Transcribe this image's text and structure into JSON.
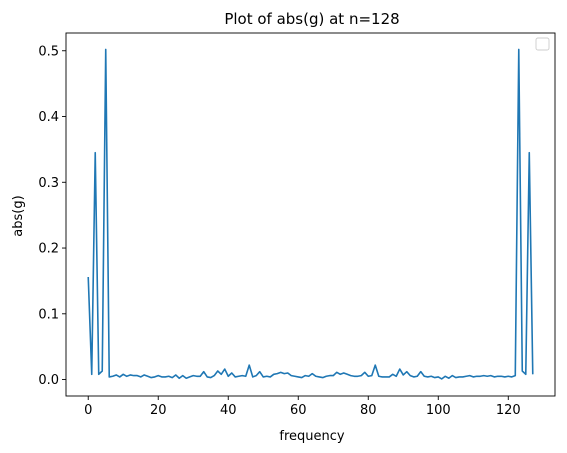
{
  "chart_data": {
    "type": "line",
    "title": "Plot of abs(g) at n=128",
    "xlabel": "frequency",
    "ylabel": "abs(g)",
    "xlim": [
      -6.35,
      133.35
    ],
    "ylim": [
      -0.025,
      0.527
    ],
    "xticks": [
      0,
      20,
      40,
      60,
      80,
      100,
      120
    ],
    "yticks": [
      0.0,
      0.1,
      0.2,
      0.3,
      0.4,
      0.5
    ],
    "xtick_labels": [
      "0",
      "20",
      "40",
      "60",
      "80",
      "100",
      "120"
    ],
    "ytick_labels": [
      "0.0",
      "0.1",
      "0.2",
      "0.3",
      "0.4",
      "0.5"
    ],
    "legend": {
      "placement": "top-right",
      "entries": []
    },
    "grid": false,
    "series": [
      {
        "color": "#1f77b4",
        "x": [
          0,
          1,
          2,
          3,
          4,
          5,
          6,
          7,
          8,
          9,
          10,
          11,
          12,
          13,
          14,
          15,
          16,
          17,
          18,
          19,
          20,
          21,
          22,
          23,
          24,
          25,
          26,
          27,
          28,
          29,
          30,
          31,
          32,
          33,
          34,
          35,
          36,
          37,
          38,
          39,
          40,
          41,
          42,
          43,
          44,
          45,
          46,
          47,
          48,
          49,
          50,
          51,
          52,
          53,
          54,
          55,
          56,
          57,
          58,
          59,
          60,
          61,
          62,
          63,
          64,
          65,
          66,
          67,
          68,
          69,
          70,
          71,
          72,
          73,
          74,
          75,
          76,
          77,
          78,
          79,
          80,
          81,
          82,
          83,
          84,
          85,
          86,
          87,
          88,
          89,
          90,
          91,
          92,
          93,
          94,
          95,
          96,
          97,
          98,
          99,
          100,
          101,
          102,
          103,
          104,
          105,
          106,
          107,
          108,
          109,
          110,
          111,
          112,
          113,
          114,
          115,
          116,
          117,
          118,
          119,
          120,
          121,
          122,
          123,
          124,
          125,
          126,
          127
        ],
        "y": [
          0.156,
          0.008,
          0.345,
          0.008,
          0.013,
          0.502,
          0.004,
          0.005,
          0.007,
          0.004,
          0.008,
          0.005,
          0.007,
          0.006,
          0.006,
          0.004,
          0.007,
          0.005,
          0.003,
          0.004,
          0.006,
          0.004,
          0.004,
          0.005,
          0.003,
          0.007,
          0.002,
          0.006,
          0.002,
          0.004,
          0.006,
          0.005,
          0.005,
          0.012,
          0.004,
          0.003,
          0.006,
          0.013,
          0.008,
          0.016,
          0.005,
          0.01,
          0.004,
          0.005,
          0.006,
          0.005,
          0.022,
          0.004,
          0.006,
          0.012,
          0.004,
          0.005,
          0.004,
          0.008,
          0.009,
          0.011,
          0.009,
          0.01,
          0.006,
          0.005,
          0.004,
          0.003,
          0.006,
          0.005,
          0.009,
          0.005,
          0.004,
          0.003,
          0.005,
          0.006,
          0.006,
          0.011,
          0.008,
          0.01,
          0.008,
          0.006,
          0.005,
          0.005,
          0.006,
          0.011,
          0.005,
          0.006,
          0.022,
          0.005,
          0.004,
          0.004,
          0.004,
          0.008,
          0.005,
          0.016,
          0.007,
          0.012,
          0.006,
          0.004,
          0.005,
          0.012,
          0.005,
          0.004,
          0.005,
          0.003,
          0.004,
          0.001,
          0.005,
          0.002,
          0.006,
          0.003,
          0.004,
          0.004,
          0.005,
          0.006,
          0.004,
          0.005,
          0.005,
          0.006,
          0.005,
          0.006,
          0.004,
          0.005,
          0.005,
          0.004,
          0.005,
          0.004,
          0.006,
          0.502,
          0.013,
          0.008,
          0.345,
          0.008
        ]
      }
    ]
  }
}
